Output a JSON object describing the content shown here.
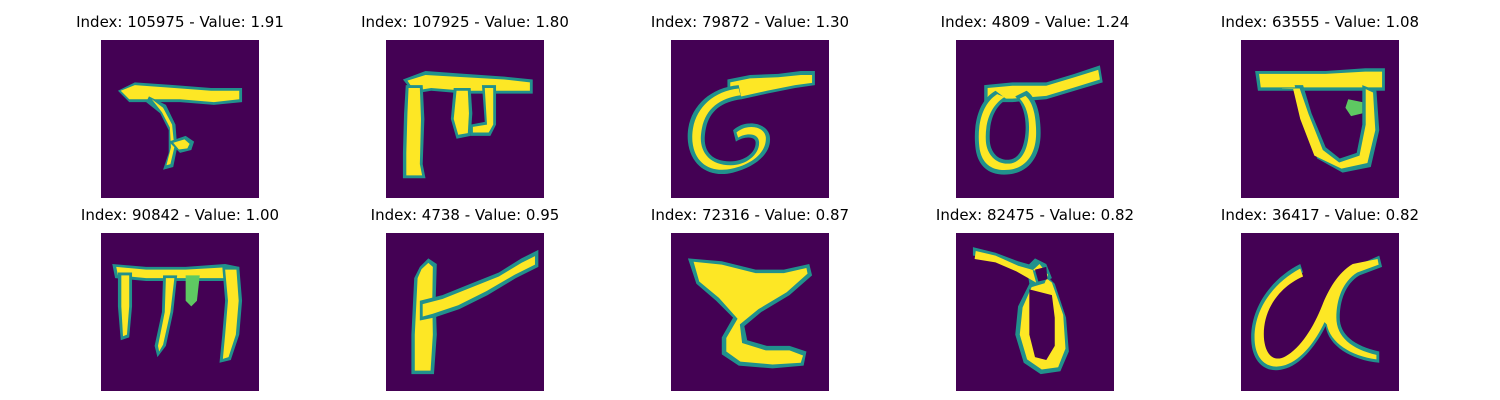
{
  "colors": {
    "background": "#440154",
    "stroke_core": "#fde725",
    "stroke_edge": "#21918c",
    "stroke_mid": "#5ec962"
  },
  "panels": [
    {
      "title": "Index: 105975 - Value: 1.91",
      "index": 105975,
      "value": 1.91
    },
    {
      "title": "Index: 107925 - Value: 1.80",
      "index": 107925,
      "value": 1.8
    },
    {
      "title": "Index: 79872 - Value: 1.30",
      "index": 79872,
      "value": 1.3
    },
    {
      "title": "Index: 4809 - Value: 1.24",
      "index": 4809,
      "value": 1.24
    },
    {
      "title": "Index: 63555 - Value: 1.08",
      "index": 63555,
      "value": 1.08
    },
    {
      "title": "Index: 90842 - Value: 1.00",
      "index": 90842,
      "value": 1.0
    },
    {
      "title": "Index: 4738 - Value: 0.95",
      "index": 4738,
      "value": 0.95
    },
    {
      "title": "Index: 72316 - Value: 0.87",
      "index": 72316,
      "value": 0.87
    },
    {
      "title": "Index: 82475 - Value: 0.82",
      "index": 82475,
      "value": 0.82
    },
    {
      "title": "Index: 36417 - Value: 0.82",
      "index": 36417,
      "value": 0.82
    }
  ]
}
